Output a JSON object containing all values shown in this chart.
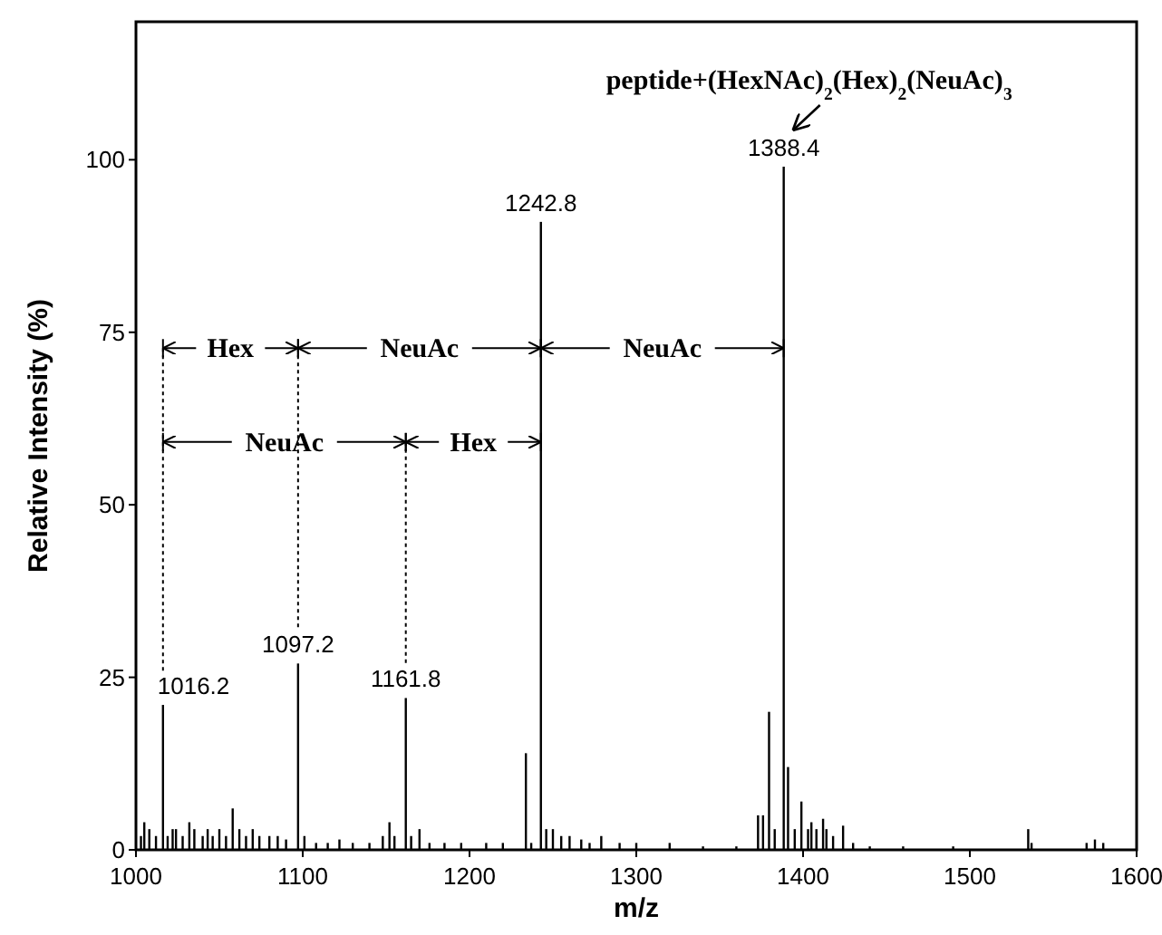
{
  "chart_data": {
    "type": "bar",
    "xlabel": "m/z",
    "ylabel": "Relative Intensity (%)",
    "color": "#000000",
    "x": [
      1003,
      1005,
      1008,
      1012,
      1016.2,
      1019,
      1022,
      1024,
      1028,
      1032,
      1035,
      1040,
      1043,
      1046,
      1050,
      1054,
      1058,
      1062,
      1066,
      1070,
      1074,
      1080,
      1085,
      1090,
      1097.2,
      1101,
      1108,
      1115,
      1122,
      1130,
      1140,
      1148,
      1152,
      1155,
      1161.8,
      1165,
      1170,
      1176,
      1185,
      1195,
      1210,
      1220,
      1233.8,
      1237,
      1242.8,
      1246,
      1250,
      1255,
      1260,
      1267,
      1272,
      1279,
      1290,
      1300,
      1320,
      1340,
      1360,
      1373,
      1376,
      1379.6,
      1383,
      1388.4,
      1391,
      1395,
      1399,
      1403,
      1405,
      1408,
      1412,
      1414,
      1418,
      1424,
      1430,
      1440,
      1460,
      1490,
      1535,
      1537,
      1570,
      1575,
      1580
    ],
    "values": [
      2,
      4,
      3,
      2,
      21,
      2,
      3,
      3,
      2,
      4,
      3,
      2,
      3,
      2,
      3,
      2,
      6,
      3,
      2,
      3,
      2,
      2,
      2,
      1.5,
      27,
      2,
      1,
      1,
      1.5,
      1,
      1,
      2,
      4,
      2,
      22,
      2,
      3,
      1,
      1,
      1,
      1,
      1,
      14,
      1,
      91,
      3,
      3,
      2,
      2,
      1.5,
      1,
      2,
      1,
      1,
      1,
      0.5,
      0.5,
      5,
      5,
      20,
      3,
      99,
      12,
      3,
      7,
      3,
      4,
      3,
      4.5,
      3,
      2,
      3.5,
      1,
      0.5,
      0.5,
      0.5,
      3,
      1,
      1,
      1.5,
      1
    ],
    "xlim": [
      1000,
      1600
    ],
    "xticks": [
      1000,
      1100,
      1200,
      1300,
      1400,
      1500,
      1600
    ],
    "ylim": [
      0,
      120
    ],
    "yticks": [
      0,
      25,
      50,
      75,
      100
    ],
    "grid": false,
    "annotations": [
      {
        "text": "1016.2",
        "x": 1016.2,
        "y": 21
      },
      {
        "text": "1097.2",
        "x": 1097.2,
        "y": 27
      },
      {
        "text": "1161.8",
        "x": 1161.8,
        "y": 22
      },
      {
        "text": "1242.8",
        "x": 1242.8,
        "y": 91
      },
      {
        "text": "1388.4",
        "x": 1388.4,
        "y": 99
      },
      {
        "text": "peptide+(HexNAc)$_{2}$(Hex)$_{2}$(NeuAc)$_{3}$",
        "x": 1388.4,
        "y": 99
      },
      {
        "text": "Hex",
        "x": 1097.2,
        "y": 72.7
      },
      {
        "text": "NeuAc",
        "x": 1242.8,
        "y": 72.7
      },
      {
        "text": "NeuAc",
        "x": 1388.4,
        "y": 72.7
      },
      {
        "text": "NeuAc",
        "x": 1161.8,
        "y": 59.1
      },
      {
        "text": "Hex",
        "x": 1242.8,
        "y": 59.1
      }
    ],
    "ref_lines": [
      {
        "axis": "x",
        "value": 1016.2,
        "line_style": "dashed"
      },
      {
        "axis": "x",
        "value": 1097.2,
        "line_style": "dashed"
      },
      {
        "axis": "x",
        "value": 1161.8,
        "line_style": "dashed"
      }
    ]
  }
}
